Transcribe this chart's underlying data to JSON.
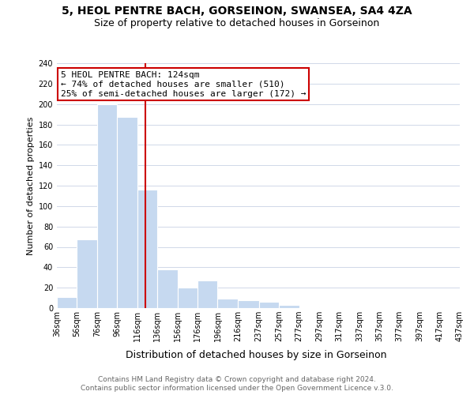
{
  "title": "5, HEOL PENTRE BACH, GORSEINON, SWANSEA, SA4 4ZA",
  "subtitle": "Size of property relative to detached houses in Gorseinon",
  "xlabel": "Distribution of detached houses by size in Gorseinon",
  "ylabel": "Number of detached properties",
  "bar_edges": [
    36,
    56,
    76,
    96,
    116,
    136,
    156,
    176,
    196,
    216,
    237,
    257,
    277,
    297,
    317,
    337,
    357,
    377,
    397,
    417,
    437
  ],
  "bar_heights": [
    11,
    67,
    200,
    187,
    116,
    38,
    20,
    27,
    9,
    8,
    6,
    3,
    1,
    0,
    0,
    0,
    0,
    0,
    0,
    1
  ],
  "bar_color": "#c6d9f0",
  "vline_x": 124,
  "vline_color": "#cc0000",
  "annotation_title": "5 HEOL PENTRE BACH: 124sqm",
  "annotation_line1": "← 74% of detached houses are smaller (510)",
  "annotation_line2": "25% of semi-detached houses are larger (172) →",
  "annotation_box_color": "#ffffff",
  "annotation_box_edge_color": "#cc0000",
  "ylim": [
    0,
    240
  ],
  "yticks": [
    0,
    20,
    40,
    60,
    80,
    100,
    120,
    140,
    160,
    180,
    200,
    220,
    240
  ],
  "tick_labels": [
    "36sqm",
    "56sqm",
    "76sqm",
    "96sqm",
    "116sqm",
    "136sqm",
    "156sqm",
    "176sqm",
    "196sqm",
    "216sqm",
    "237sqm",
    "257sqm",
    "277sqm",
    "297sqm",
    "317sqm",
    "337sqm",
    "357sqm",
    "377sqm",
    "397sqm",
    "417sqm",
    "437sqm"
  ],
  "footer1": "Contains HM Land Registry data © Crown copyright and database right 2024.",
  "footer2": "Contains public sector information licensed under the Open Government Licence v.3.0.",
  "title_fontsize": 10,
  "subtitle_fontsize": 9,
  "xlabel_fontsize": 9,
  "ylabel_fontsize": 8,
  "tick_fontsize": 7,
  "annotation_fontsize": 8,
  "footer_fontsize": 6.5,
  "grid_color": "#d0d8e8"
}
